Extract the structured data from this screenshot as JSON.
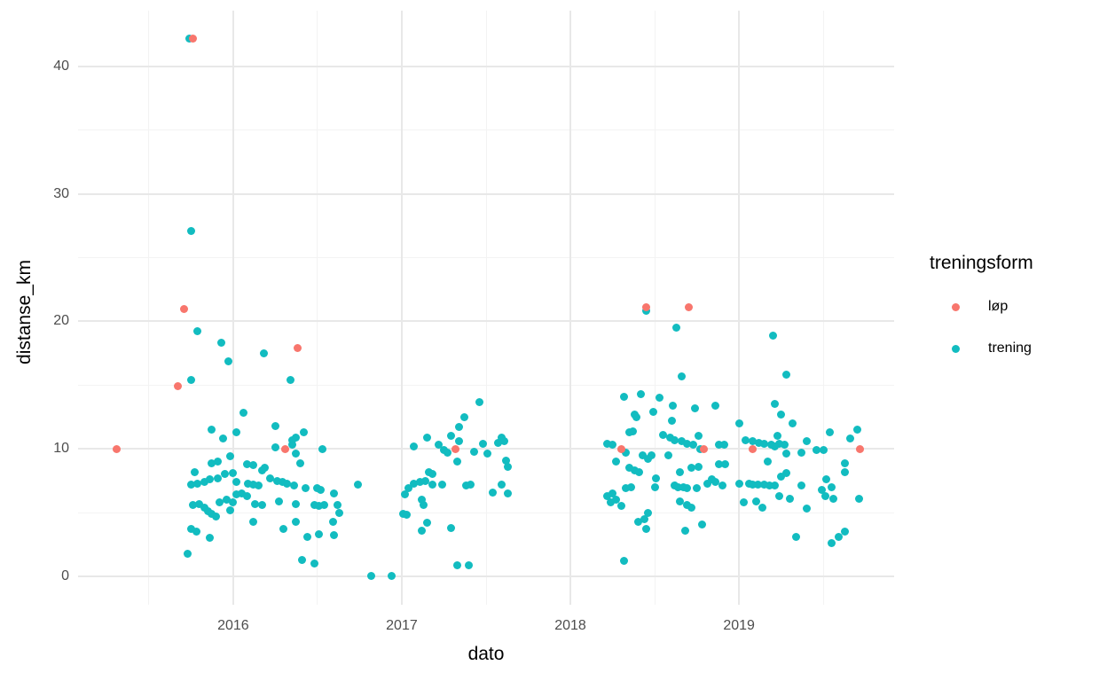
{
  "chart_data": {
    "type": "scatter",
    "title": "",
    "xlabel": "dato",
    "ylabel": "distanse_km",
    "x_ticks": [
      2016,
      2017,
      2018,
      2019
    ],
    "x_minor_ticks": [
      2015.5,
      2016.5,
      2017.5,
      2018.5,
      2019.5
    ],
    "y_ticks": [
      0,
      10,
      20,
      30,
      40
    ],
    "y_minor_ticks": [
      5,
      15,
      25,
      35
    ],
    "xlim": [
      2015.08,
      2019.92
    ],
    "ylim": [
      -2.23,
      44.38
    ],
    "grid": "major and minor gridlines, light gray on white, no axis lines, no tick marks",
    "background_color": "#ffffff",
    "grid_color_major": "#e8e8e8",
    "grid_color_minor": "#f3f3f3",
    "axis_text_color": "#4d4d4d",
    "legend": {
      "title": "treningsform",
      "position": "right",
      "items": [
        {
          "label": "løp",
          "color": "#f8766d"
        },
        {
          "label": "trening",
          "color": "#12bcc0"
        }
      ]
    },
    "series": [
      {
        "name": "løp",
        "color": "#f8766d",
        "points": [
          [
            2015.31,
            10.0
          ],
          [
            2015.67,
            14.9
          ],
          [
            2015.71,
            21.0
          ],
          [
            2015.76,
            42.2
          ],
          [
            2016.31,
            10.0
          ],
          [
            2016.38,
            17.9
          ],
          [
            2017.32,
            10.0
          ],
          [
            2018.3,
            10.0
          ],
          [
            2018.45,
            21.1
          ],
          [
            2018.7,
            21.1
          ],
          [
            2018.79,
            10.0
          ],
          [
            2019.08,
            10.0
          ],
          [
            2019.72,
            10.0
          ]
        ]
      },
      {
        "name": "trening",
        "color": "#12bcc0",
        "points": [
          [
            2015.74,
            42.2
          ],
          [
            2015.75,
            27.1
          ],
          [
            2015.79,
            19.2
          ],
          [
            2015.93,
            18.3
          ],
          [
            2015.97,
            16.9
          ],
          [
            2016.18,
            17.5
          ],
          [
            2015.75,
            15.4
          ],
          [
            2016.34,
            15.4
          ],
          [
            2016.06,
            12.8
          ],
          [
            2015.87,
            11.5
          ],
          [
            2016.02,
            11.3
          ],
          [
            2015.94,
            10.8
          ],
          [
            2016.25,
            11.8
          ],
          [
            2016.25,
            10.1
          ],
          [
            2016.35,
            10.7
          ],
          [
            2016.37,
            9.6
          ],
          [
            2015.87,
            8.9
          ],
          [
            2015.91,
            9.0
          ],
          [
            2015.98,
            9.4
          ],
          [
            2016.08,
            8.8
          ],
          [
            2016.12,
            8.7
          ],
          [
            2015.77,
            8.2
          ],
          [
            2015.95,
            8.0
          ],
          [
            2016.0,
            8.1
          ],
          [
            2016.17,
            8.3
          ],
          [
            2016.19,
            8.5
          ],
          [
            2015.75,
            7.2
          ],
          [
            2015.79,
            7.3
          ],
          [
            2015.83,
            7.4
          ],
          [
            2015.86,
            7.6
          ],
          [
            2015.91,
            7.7
          ],
          [
            2016.02,
            7.4
          ],
          [
            2016.09,
            7.3
          ],
          [
            2016.12,
            7.2
          ],
          [
            2016.15,
            7.1
          ],
          [
            2016.22,
            7.7
          ],
          [
            2016.26,
            7.5
          ],
          [
            2016.29,
            7.4
          ],
          [
            2016.32,
            7.3
          ],
          [
            2016.02,
            6.4
          ],
          [
            2016.05,
            6.5
          ],
          [
            2015.76,
            5.6
          ],
          [
            2015.8,
            5.7
          ],
          [
            2015.83,
            5.4
          ],
          [
            2015.85,
            5.1
          ],
          [
            2015.87,
            4.9
          ],
          [
            2015.9,
            4.7
          ],
          [
            2015.92,
            5.8
          ],
          [
            2015.96,
            6.0
          ],
          [
            2016.0,
            5.8
          ],
          [
            2015.98,
            5.2
          ],
          [
            2016.08,
            6.3
          ],
          [
            2016.13,
            5.7
          ],
          [
            2016.17,
            5.6
          ],
          [
            2016.27,
            5.9
          ],
          [
            2015.75,
            3.7
          ],
          [
            2015.78,
            3.5
          ],
          [
            2015.86,
            3.0
          ],
          [
            2016.12,
            4.3
          ],
          [
            2016.3,
            3.7
          ],
          [
            2015.73,
            1.8
          ],
          [
            2016.42,
            11.3
          ],
          [
            2016.37,
            10.9
          ],
          [
            2016.35,
            10.3
          ],
          [
            2016.53,
            10.0
          ],
          [
            2016.4,
            8.9
          ],
          [
            2016.74,
            7.2
          ],
          [
            2016.36,
            7.1
          ],
          [
            2016.43,
            6.9
          ],
          [
            2016.5,
            6.9
          ],
          [
            2016.52,
            6.8
          ],
          [
            2016.6,
            6.5
          ],
          [
            2016.37,
            5.7
          ],
          [
            2016.48,
            5.6
          ],
          [
            2016.51,
            5.5
          ],
          [
            2016.54,
            5.6
          ],
          [
            2016.62,
            5.6
          ],
          [
            2016.63,
            5.0
          ],
          [
            2016.37,
            4.3
          ],
          [
            2016.59,
            4.3
          ],
          [
            2016.44,
            3.1
          ],
          [
            2016.51,
            3.3
          ],
          [
            2016.6,
            3.2
          ],
          [
            2016.41,
            1.3
          ],
          [
            2016.48,
            1.0
          ],
          [
            2016.82,
            0.0
          ],
          [
            2016.94,
            0.0
          ],
          [
            2017.07,
            10.2
          ],
          [
            2017.15,
            10.9
          ],
          [
            2017.16,
            8.2
          ],
          [
            2017.04,
            6.9
          ],
          [
            2017.07,
            7.3
          ],
          [
            2017.11,
            7.4
          ],
          [
            2017.14,
            7.5
          ],
          [
            2017.02,
            6.4
          ],
          [
            2017.01,
            4.9
          ],
          [
            2017.03,
            4.8
          ],
          [
            2017.13,
            5.6
          ],
          [
            2017.15,
            4.2
          ],
          [
            2017.12,
            3.6
          ],
          [
            2017.46,
            13.7
          ],
          [
            2017.37,
            12.5
          ],
          [
            2017.34,
            11.7
          ],
          [
            2017.29,
            11.0
          ],
          [
            2017.34,
            10.6
          ],
          [
            2017.22,
            10.3
          ],
          [
            2017.25,
            9.9
          ],
          [
            2017.27,
            9.7
          ],
          [
            2017.43,
            9.8
          ],
          [
            2017.48,
            10.4
          ],
          [
            2017.51,
            9.6
          ],
          [
            2017.57,
            10.5
          ],
          [
            2017.59,
            10.9
          ],
          [
            2017.61,
            10.6
          ],
          [
            2017.33,
            9.0
          ],
          [
            2017.62,
            9.1
          ],
          [
            2017.63,
            8.6
          ],
          [
            2017.18,
            8.0
          ],
          [
            2017.12,
            6.0
          ],
          [
            2017.18,
            7.2
          ],
          [
            2017.24,
            7.2
          ],
          [
            2017.38,
            7.1
          ],
          [
            2017.41,
            7.2
          ],
          [
            2017.54,
            6.6
          ],
          [
            2017.59,
            7.2
          ],
          [
            2017.63,
            6.5
          ],
          [
            2017.29,
            3.8
          ],
          [
            2017.33,
            0.9
          ],
          [
            2017.4,
            0.9
          ],
          [
            2018.45,
            20.8
          ],
          [
            2018.63,
            19.5
          ],
          [
            2018.66,
            15.7
          ],
          [
            2018.32,
            14.1
          ],
          [
            2018.42,
            14.3
          ],
          [
            2018.53,
            14.0
          ],
          [
            2018.61,
            13.4
          ],
          [
            2018.74,
            13.2
          ],
          [
            2018.86,
            13.4
          ],
          [
            2018.38,
            12.7
          ],
          [
            2018.39,
            12.5
          ],
          [
            2018.49,
            12.9
          ],
          [
            2018.6,
            12.2
          ],
          [
            2018.35,
            11.3
          ],
          [
            2018.37,
            11.4
          ],
          [
            2018.55,
            11.1
          ],
          [
            2018.59,
            10.9
          ],
          [
            2018.62,
            10.7
          ],
          [
            2018.66,
            10.6
          ],
          [
            2018.69,
            10.4
          ],
          [
            2018.73,
            10.3
          ],
          [
            2018.76,
            11.0
          ],
          [
            2018.22,
            10.4
          ],
          [
            2018.25,
            10.3
          ],
          [
            2018.33,
            9.7
          ],
          [
            2018.43,
            9.5
          ],
          [
            2018.48,
            9.5
          ],
          [
            2018.46,
            9.2
          ],
          [
            2018.77,
            10.0
          ],
          [
            2018.88,
            10.3
          ],
          [
            2018.91,
            10.3
          ],
          [
            2018.27,
            9.0
          ],
          [
            2018.35,
            8.5
          ],
          [
            2018.38,
            8.3
          ],
          [
            2018.41,
            8.2
          ],
          [
            2018.58,
            9.5
          ],
          [
            2018.65,
            8.2
          ],
          [
            2018.72,
            8.5
          ],
          [
            2018.76,
            8.6
          ],
          [
            2018.88,
            8.8
          ],
          [
            2018.92,
            8.8
          ],
          [
            2018.51,
            7.7
          ],
          [
            2018.22,
            6.3
          ],
          [
            2018.25,
            6.5
          ],
          [
            2018.33,
            6.9
          ],
          [
            2018.36,
            7.0
          ],
          [
            2018.5,
            7.0
          ],
          [
            2018.62,
            7.1
          ],
          [
            2018.64,
            7.0
          ],
          [
            2018.67,
            7.0
          ],
          [
            2018.69,
            6.9
          ],
          [
            2018.75,
            6.9
          ],
          [
            2018.81,
            7.3
          ],
          [
            2018.84,
            7.6
          ],
          [
            2018.86,
            7.4
          ],
          [
            2018.9,
            7.1
          ],
          [
            2018.27,
            6.0
          ],
          [
            2018.3,
            5.5
          ],
          [
            2018.24,
            5.8
          ],
          [
            2018.44,
            4.5
          ],
          [
            2018.46,
            5.0
          ],
          [
            2018.69,
            5.6
          ],
          [
            2018.72,
            5.4
          ],
          [
            2018.65,
            5.9
          ],
          [
            2018.4,
            4.3
          ],
          [
            2018.45,
            3.7
          ],
          [
            2018.68,
            3.6
          ],
          [
            2018.78,
            4.1
          ],
          [
            2018.32,
            1.2
          ],
          [
            2019.0,
            12.0
          ],
          [
            2019.2,
            18.9
          ],
          [
            2019.28,
            15.8
          ],
          [
            2019.21,
            13.5
          ],
          [
            2019.25,
            12.7
          ],
          [
            2019.32,
            12.0
          ],
          [
            2019.54,
            11.3
          ],
          [
            2019.7,
            11.5
          ],
          [
            2019.66,
            10.8
          ],
          [
            2019.04,
            10.7
          ],
          [
            2019.08,
            10.6
          ],
          [
            2019.12,
            10.5
          ],
          [
            2019.15,
            10.4
          ],
          [
            2019.19,
            10.3
          ],
          [
            2019.23,
            11.0
          ],
          [
            2019.24,
            10.4
          ],
          [
            2019.27,
            10.3
          ],
          [
            2019.21,
            10.2
          ],
          [
            2019.28,
            9.6
          ],
          [
            2019.37,
            9.7
          ],
          [
            2019.4,
            10.6
          ],
          [
            2019.46,
            9.9
          ],
          [
            2019.5,
            9.9
          ],
          [
            2019.17,
            9.0
          ],
          [
            2019.63,
            8.9
          ],
          [
            2019.28,
            8.1
          ],
          [
            2019.63,
            8.2
          ],
          [
            2019.0,
            7.3
          ],
          [
            2019.06,
            7.3
          ],
          [
            2019.08,
            7.2
          ],
          [
            2019.11,
            7.2
          ],
          [
            2019.15,
            7.2
          ],
          [
            2019.18,
            7.1
          ],
          [
            2019.21,
            7.1
          ],
          [
            2019.25,
            7.8
          ],
          [
            2019.37,
            7.1
          ],
          [
            2019.52,
            7.6
          ],
          [
            2019.49,
            6.8
          ],
          [
            2019.55,
            7.0
          ],
          [
            2019.51,
            6.3
          ],
          [
            2019.56,
            6.1
          ],
          [
            2019.71,
            6.1
          ],
          [
            2019.03,
            5.8
          ],
          [
            2019.1,
            5.9
          ],
          [
            2019.14,
            5.4
          ],
          [
            2019.24,
            6.3
          ],
          [
            2019.3,
            6.1
          ],
          [
            2019.4,
            5.3
          ],
          [
            2019.34,
            3.1
          ],
          [
            2019.55,
            2.6
          ],
          [
            2019.59,
            3.1
          ],
          [
            2019.63,
            3.5
          ]
        ]
      }
    ]
  }
}
